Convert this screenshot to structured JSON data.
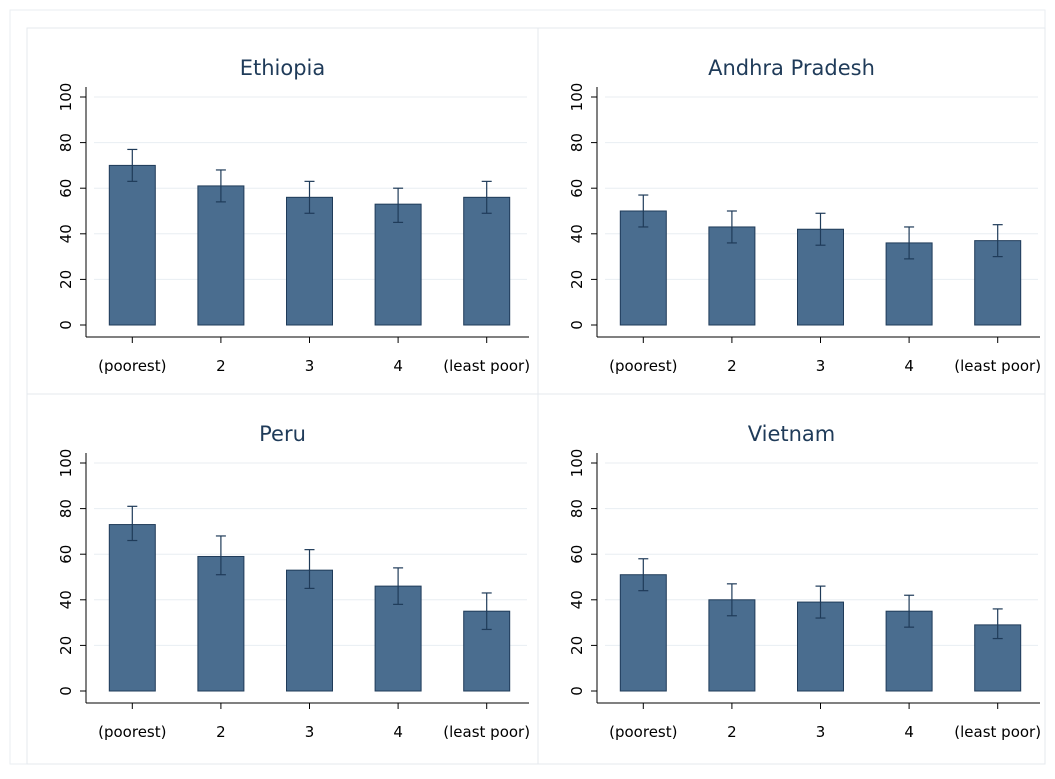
{
  "chart_data": [
    {
      "type": "bar",
      "title": "Ethiopia",
      "categories": [
        "(poorest)",
        "2",
        "3",
        "4",
        "(least poor)"
      ],
      "values": [
        70,
        61,
        56,
        53,
        56
      ],
      "error_low": [
        63,
        54,
        49,
        45,
        49
      ],
      "error_high": [
        77,
        68,
        63,
        60,
        63
      ],
      "yticks": [
        0,
        20,
        40,
        60,
        80,
        100
      ],
      "ylim": [
        0,
        100
      ],
      "grid": true
    },
    {
      "type": "bar",
      "title": "Andhra Pradesh",
      "categories": [
        "(poorest)",
        "2",
        "3",
        "4",
        "(least poor)"
      ],
      "values": [
        50,
        43,
        42,
        36,
        37
      ],
      "error_low": [
        43,
        36,
        35,
        29,
        30
      ],
      "error_high": [
        57,
        50,
        49,
        43,
        44
      ],
      "yticks": [
        0,
        20,
        40,
        60,
        80,
        100
      ],
      "ylim": [
        0,
        100
      ],
      "grid": true
    },
    {
      "type": "bar",
      "title": "Peru",
      "categories": [
        "(poorest)",
        "2",
        "3",
        "4",
        "(least poor)"
      ],
      "values": [
        73,
        59,
        53,
        46,
        35
      ],
      "error_low": [
        66,
        51,
        45,
        38,
        27
      ],
      "error_high": [
        81,
        68,
        62,
        54,
        43
      ],
      "yticks": [
        0,
        20,
        40,
        60,
        80,
        100
      ],
      "ylim": [
        0,
        100
      ],
      "grid": true
    },
    {
      "type": "bar",
      "title": "Vietnam",
      "categories": [
        "(poorest)",
        "2",
        "3",
        "4",
        "(least poor)"
      ],
      "values": [
        51,
        40,
        39,
        35,
        29
      ],
      "error_low": [
        44,
        33,
        32,
        28,
        23
      ],
      "error_high": [
        58,
        47,
        46,
        42,
        36
      ],
      "yticks": [
        0,
        20,
        40,
        60,
        80,
        100
      ],
      "ylim": [
        0,
        100
      ],
      "grid": true
    }
  ],
  "colors": {
    "bar_fill": "#4a6d8f",
    "bar_edge": "#1f3b59",
    "error_bar": "#1f3b59",
    "grid": "#e8eef2",
    "panel_border": "#e4e9ee",
    "axis": "#000000",
    "title": "#1f3b59"
  }
}
